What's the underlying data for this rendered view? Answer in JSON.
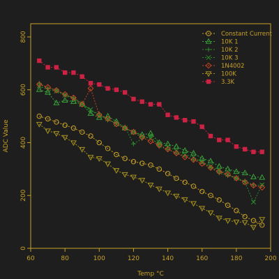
{
  "chart_data": {
    "type": "line",
    "title": "",
    "xlabel": "Temp °C",
    "ylabel": "ADC Value",
    "xlim": [
      60,
      200
    ],
    "ylim": [
      0,
      850
    ],
    "xticks": [
      "60",
      "80",
      "100",
      "120",
      "140",
      "160",
      "180",
      "200"
    ],
    "yticks": [
      "0",
      "200",
      "400",
      "600",
      "800"
    ],
    "x": [
      65,
      70,
      75,
      80,
      85,
      90,
      95,
      100,
      105,
      110,
      115,
      120,
      125,
      130,
      135,
      140,
      145,
      150,
      155,
      160,
      165,
      170,
      175,
      180,
      185,
      190,
      195
    ],
    "legend_position": "top-right",
    "grid": false,
    "axis_color": "#c9a227",
    "background": "#1e1e1e",
    "series": [
      {
        "name": "Constant Current",
        "color": "#c9a227",
        "marker": "circle",
        "values": [
          500,
          490,
          478,
          466,
          455,
          440,
          425,
          400,
          378,
          355,
          340,
          328,
          322,
          315,
          300,
          283,
          265,
          250,
          235,
          215,
          200,
          183,
          163,
          143,
          120,
          105,
          88
        ]
      },
      {
        "name": "10K 1",
        "color": "#3aa33a",
        "marker": "triangle-up",
        "values": [
          600,
          590,
          550,
          560,
          555,
          545,
          510,
          495,
          500,
          480,
          455,
          440,
          430,
          435,
          400,
          395,
          385,
          370,
          360,
          340,
          330,
          310,
          300,
          290,
          285,
          270,
          268
        ]
      },
      {
        "name": "10K 2",
        "color": "#2e8b2e",
        "marker": "plus",
        "values": [
          625,
          605,
          600,
          580,
          570,
          550,
          520,
          510,
          485,
          475,
          460,
          395,
          415,
          425,
          385,
          375,
          360,
          350,
          335,
          330,
          305,
          285,
          275,
          265,
          255,
          240,
          238
        ]
      },
      {
        "name": "10K 3",
        "color": "#2e8b2e",
        "marker": "x",
        "values": [
          615,
          600,
          595,
          580,
          565,
          545,
          525,
          500,
          490,
          470,
          455,
          440,
          425,
          415,
          395,
          385,
          370,
          355,
          345,
          325,
          310,
          295,
          280,
          265,
          250,
          175,
          240
        ]
      },
      {
        "name": "1N4002",
        "color": "#cc4422",
        "marker": "diamond",
        "values": [
          620,
          610,
          598,
          583,
          570,
          545,
          605,
          505,
          490,
          470,
          455,
          440,
          420,
          405,
          390,
          375,
          360,
          345,
          335,
          320,
          305,
          290,
          280,
          265,
          250,
          238,
          230
        ]
      },
      {
        "name": "100K",
        "color": "#a8921e",
        "marker": "triangle-down",
        "values": [
          470,
          445,
          435,
          420,
          400,
          375,
          345,
          340,
          320,
          295,
          280,
          270,
          258,
          240,
          225,
          210,
          198,
          185,
          170,
          152,
          135,
          115,
          105,
          100,
          98,
          80,
          110
        ]
      },
      {
        "name": "3.3K",
        "color": "#cc2244",
        "marker": "square",
        "values": [
          710,
          685,
          685,
          665,
          665,
          650,
          625,
          620,
          605,
          600,
          590,
          565,
          555,
          545,
          545,
          505,
          495,
          485,
          480,
          460,
          425,
          410,
          410,
          385,
          375,
          365,
          365
        ]
      }
    ]
  }
}
